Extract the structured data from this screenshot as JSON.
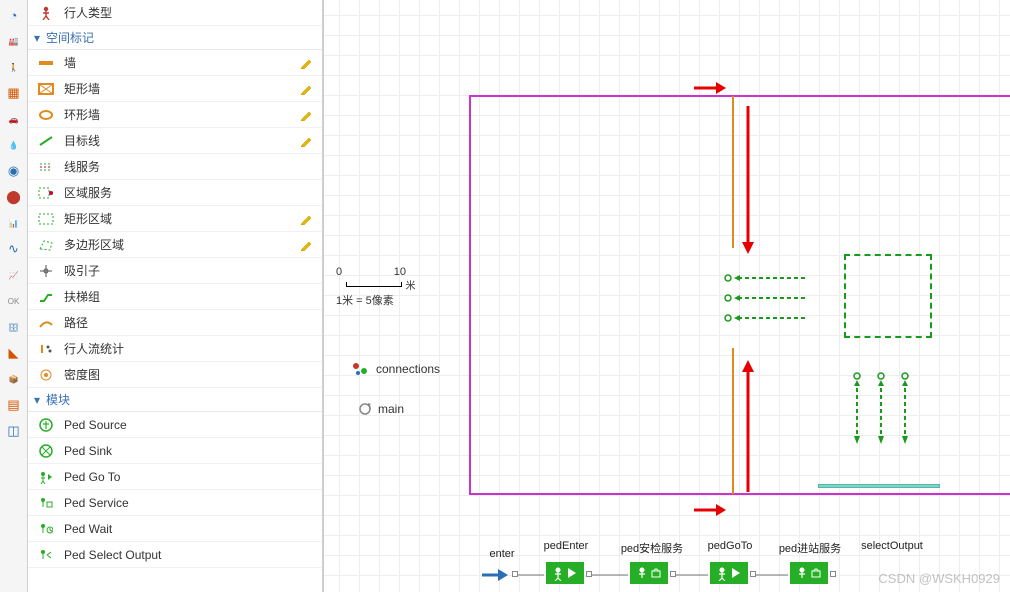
{
  "rail_icons": [
    {
      "name": "clock-icon",
      "glyph": "◔",
      "color": "#2a6fb5"
    },
    {
      "name": "factory-icon",
      "glyph": "🏭",
      "color": "#8e44ad"
    },
    {
      "name": "pedestrian-icon",
      "glyph": "🚶",
      "color": "#27ae27"
    },
    {
      "name": "rail-icon",
      "glyph": "▦",
      "color": "#d35400"
    },
    {
      "name": "car-icon",
      "glyph": "🚗",
      "color": "#555"
    },
    {
      "name": "fluid-icon",
      "glyph": "💧",
      "color": "#2a9fd6"
    },
    {
      "name": "state-icon",
      "glyph": "◉",
      "color": "#2a6fb5"
    },
    {
      "name": "agent-icon",
      "glyph": "⬤",
      "color": "#c0392b"
    },
    {
      "name": "chart-icon",
      "glyph": "📊",
      "color": "#8e44ad"
    },
    {
      "name": "connect-icon",
      "glyph": "∿",
      "color": "#2a6fb5"
    },
    {
      "name": "bars-icon",
      "glyph": "📈",
      "color": "#c0392b"
    },
    {
      "name": "ok-icon",
      "glyph": "OK",
      "color": "#888"
    },
    {
      "name": "db-icon",
      "glyph": "🗄",
      "color": "#2a6fb5"
    },
    {
      "name": "shape-icon",
      "glyph": "◣",
      "color": "#d35400"
    },
    {
      "name": "box-icon",
      "glyph": "📦",
      "color": "#8e44ad"
    },
    {
      "name": "layers-icon",
      "glyph": "▤",
      "color": "#d35400"
    },
    {
      "name": "window-icon",
      "glyph": "◫",
      "color": "#2a6fb5"
    }
  ],
  "palette": {
    "top_item": {
      "label": "行人类型",
      "icon": "person-red",
      "color": "#c0392b"
    },
    "group_space": "空间标记",
    "space_items": [
      {
        "label": "墙",
        "icon": "wall",
        "color": "#e08a1f",
        "edit": true
      },
      {
        "label": "矩形墙",
        "icon": "rect-wall",
        "color": "#e08a1f",
        "edit": true
      },
      {
        "label": "环形墙",
        "icon": "ring-wall",
        "color": "#e08a1f",
        "edit": true
      },
      {
        "label": "目标线",
        "icon": "target-line",
        "color": "#27ae27",
        "edit": true
      },
      {
        "label": "线服务",
        "icon": "line-serv",
        "color": "#27ae27",
        "edit": false
      },
      {
        "label": "区域服务",
        "icon": "area-serv",
        "color": "#27ae27",
        "edit": false
      },
      {
        "label": "矩形区域",
        "icon": "rect-area",
        "color": "#27ae27",
        "edit": true
      },
      {
        "label": "多边形区域",
        "icon": "poly-area",
        "color": "#27ae27",
        "edit": true
      },
      {
        "label": "吸引子",
        "icon": "attractor",
        "color": "#555",
        "edit": false
      },
      {
        "label": "扶梯组",
        "icon": "escalator",
        "color": "#27ae27",
        "edit": false
      },
      {
        "label": "路径",
        "icon": "path",
        "color": "#e08a1f",
        "edit": false
      },
      {
        "label": "行人流统计",
        "icon": "flow-stat",
        "color": "#e08a1f",
        "edit": false
      },
      {
        "label": "密度图",
        "icon": "density",
        "color": "#e08a1f",
        "edit": false
      }
    ],
    "group_blocks": "模块",
    "block_items": [
      {
        "label": "Ped Source",
        "icon": "src",
        "color": "#27ae27"
      },
      {
        "label": "Ped Sink",
        "icon": "sink",
        "color": "#27ae27"
      },
      {
        "label": "Ped Go To",
        "icon": "goto",
        "color": "#27ae27"
      },
      {
        "label": "Ped Service",
        "icon": "service",
        "color": "#27ae27"
      },
      {
        "label": "Ped Wait",
        "icon": "wait",
        "color": "#27ae27"
      },
      {
        "label": "Ped Select Output",
        "icon": "select",
        "color": "#27ae27"
      }
    ]
  },
  "scale": {
    "t0": "0",
    "t10": "10",
    "unit": "米",
    "text": "1米 = 5像素"
  },
  "connections_label": "connections",
  "main_label": "main",
  "flow_labels": [
    "enter",
    "pedEnter",
    "ped安检服务",
    "pedGoTo",
    "ped进站服务",
    "selectOutput"
  ],
  "watermark": "CSDN @WSKH0929",
  "colors": {
    "magenta": "#cc33cc",
    "orange": "#e08a1f",
    "green": "#27ae27",
    "red": "#e60000",
    "dash_green": "#1a9a1a",
    "blue": "#2a6fb5",
    "turq": "#7fd6c8",
    "grid": "#eee"
  }
}
